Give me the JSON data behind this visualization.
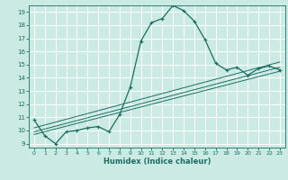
{
  "xlabel": "Humidex (Indice chaleur)",
  "bg_color": "#cceae4",
  "line_color": "#1a6e62",
  "grid_color": "#ffffff",
  "xlim": [
    -0.5,
    23.5
  ],
  "ylim": [
    8.7,
    19.5
  ],
  "xticks": [
    0,
    1,
    2,
    3,
    4,
    5,
    6,
    7,
    8,
    9,
    10,
    11,
    12,
    13,
    14,
    15,
    16,
    17,
    18,
    19,
    20,
    21,
    22,
    23
  ],
  "yticks": [
    9,
    10,
    11,
    12,
    13,
    14,
    15,
    16,
    17,
    18,
    19
  ],
  "curve1_x": [
    0,
    1,
    2,
    3,
    4,
    5,
    6,
    7,
    8,
    9,
    10,
    11,
    12,
    13,
    14,
    15,
    16,
    17,
    18,
    19,
    20,
    21,
    22,
    23
  ],
  "curve1_y": [
    10.8,
    9.6,
    9.0,
    9.9,
    10.0,
    10.2,
    10.3,
    9.9,
    11.2,
    13.3,
    16.8,
    18.2,
    18.5,
    19.5,
    19.1,
    18.3,
    16.9,
    15.1,
    14.6,
    14.8,
    14.2,
    14.7,
    14.9,
    14.6
  ],
  "line1_x": [
    0,
    23
  ],
  "line1_y": [
    9.7,
    14.5
  ],
  "line2_x": [
    0,
    23
  ],
  "line2_y": [
    9.9,
    14.8
  ],
  "line3_x": [
    0,
    23
  ],
  "line3_y": [
    10.2,
    15.2
  ]
}
